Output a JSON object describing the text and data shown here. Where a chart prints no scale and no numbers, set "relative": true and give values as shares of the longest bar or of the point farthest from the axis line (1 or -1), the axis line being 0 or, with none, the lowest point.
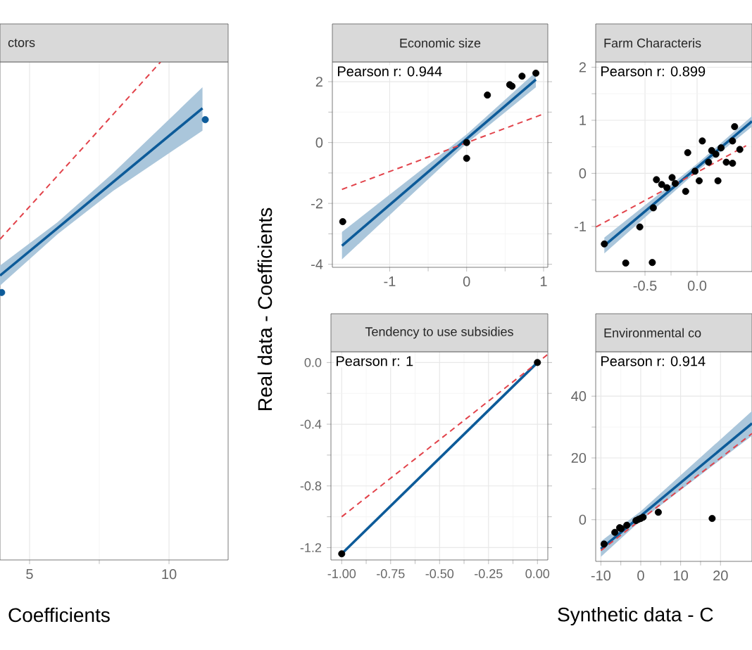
{
  "chart_data": [
    {
      "type": "scatter",
      "title": "ctors",
      "xlabel": "Coefficients",
      "relative": true,
      "grid": "x",
      "tick_labels": "x",
      "xlim": [
        3.94,
        12.12
      ],
      "xticks": [
        5,
        10
      ],
      "series": [
        {
          "marker": "circle",
          "color": "#0d5b99",
          "x": [
            4.0,
            11.3
          ],
          "values": [
            0.537,
            0.884
          ]
        },
        {
          "type": "line",
          "line_style": "solid",
          "color": "#0d5b99",
          "x": [
            3.94,
            6,
            8,
            11.2
          ],
          "values": [
            0.571,
            0.666,
            0.759,
            0.907
          ],
          "lower": [
            0.551,
            0.654,
            0.741,
            0.862
          ],
          "upper": [
            0.591,
            0.678,
            0.777,
            0.949
          ]
        },
        {
          "type": "line",
          "line_style": "dashed",
          "color": "#e2434b",
          "x": [
            3.94,
            9.7
          ],
          "values": [
            0.644,
            1.0
          ]
        }
      ]
    },
    {
      "type": "scatter",
      "title": "Economic size",
      "annotations": [
        "Pearson r: 0.944"
      ],
      "grid": true,
      "xlim": [
        -1.745,
        1.055
      ],
      "ylim": [
        -4.1,
        2.65
      ],
      "xticks": [
        -1,
        0,
        1
      ],
      "yticks": [
        -4,
        -2,
        0,
        2
      ],
      "series": [
        {
          "marker": "circle",
          "color": "#000000",
          "x": [
            -1.61,
            0.0,
            0.0,
            0.27,
            0.56,
            0.59,
            0.72,
            0.9
          ],
          "values": [
            -2.6,
            0.0,
            -0.52,
            1.56,
            1.9,
            1.85,
            2.18,
            2.28
          ]
        },
        {
          "type": "line",
          "line_style": "solid",
          "color": "#0d5b99",
          "x": [
            -1.62,
            0,
            0.9
          ],
          "values": [
            -3.39,
            0.12,
            2.07
          ],
          "lower": [
            -3.84,
            -0.03,
            1.82
          ],
          "upper": [
            -2.94,
            0.27,
            2.32
          ]
        },
        {
          "type": "line",
          "line_style": "dashed",
          "color": "#e2434b",
          "x": [
            -1.62,
            1.0
          ],
          "values": [
            -1.54,
            0.94
          ]
        }
      ]
    },
    {
      "type": "scatter",
      "title": "Farm Characteris",
      "annotations": [
        "Pearson r: 0.899"
      ],
      "grid": true,
      "xlim": [
        -0.973,
        0.527
      ],
      "ylim": [
        -1.85,
        2.1
      ],
      "xticks": [
        -0.5,
        {
          "value": 0,
          "label": "0.0"
        }
      ],
      "yticks": [
        -1,
        0,
        1,
        2
      ],
      "series": [
        {
          "marker": "circle",
          "color": "#000000",
          "x": [
            -0.89,
            -0.685,
            -0.43,
            -0.55,
            -0.42,
            -0.39,
            -0.34,
            -0.29,
            -0.24,
            -0.21,
            -0.11,
            -0.09,
            -0.02,
            0.02,
            0.05,
            0.11,
            0.14,
            0.18,
            0.2,
            0.23,
            0.28,
            0.34,
            0.34,
            0.36,
            0.41
          ],
          "values": [
            -1.33,
            -1.69,
            -1.68,
            -1.01,
            -0.65,
            -0.12,
            -0.21,
            -0.27,
            -0.08,
            -0.19,
            -0.34,
            0.39,
            0.04,
            -0.14,
            0.61,
            0.21,
            0.43,
            0.36,
            -0.14,
            0.48,
            0.21,
            0.19,
            0.61,
            0.88,
            0.45
          ]
        },
        {
          "type": "line",
          "line_style": "solid",
          "color": "#0d5b99",
          "x": [
            -0.89,
            0,
            0.527
          ],
          "values": [
            -1.36,
            0.11,
            0.98
          ],
          "lower": [
            -1.51,
            0.04,
            0.88
          ],
          "upper": [
            -1.21,
            0.18,
            1.08
          ]
        },
        {
          "type": "line",
          "line_style": "dashed",
          "color": "#e2434b",
          "x": [
            -0.97,
            0.47
          ],
          "values": [
            -1.01,
            0.52
          ]
        }
      ]
    },
    {
      "type": "scatter",
      "title": "Tendency to use subsidies",
      "ylabel": "Real data - Coefficients",
      "annotations": [
        "Pearson r: 1"
      ],
      "grid": true,
      "xlim": [
        -1.055,
        0.053
      ],
      "ylim": [
        -1.28,
        0.07
      ],
      "xticks": [
        {
          "value": -1.0,
          "label": "-1.00"
        },
        {
          "value": -0.75,
          "label": "-0.75"
        },
        {
          "value": -0.5,
          "label": "-0.50"
        },
        {
          "value": -0.25,
          "label": "-0.25"
        },
        {
          "value": 0,
          "label": "0.00"
        }
      ],
      "yticks": [
        -1.2,
        -0.8,
        -0.4,
        {
          "value": 0,
          "label": "0.0"
        }
      ],
      "series": [
        {
          "marker": "circle",
          "color": "#000000",
          "x": [
            -1.0,
            0.0
          ],
          "values": [
            -1.24,
            0.0
          ]
        },
        {
          "type": "line",
          "line_style": "solid",
          "color": "#0d5b99",
          "x": [
            -1.0,
            0.0
          ],
          "values": [
            -1.24,
            0.0
          ]
        },
        {
          "type": "line",
          "line_style": "dashed",
          "color": "#e2434b",
          "x": [
            -1.0,
            0.05
          ],
          "values": [
            -1.0,
            0.05
          ]
        }
      ]
    },
    {
      "type": "scatter",
      "title": "Environmental co",
      "xlabel": "Synthetic data - C",
      "annotations": [
        "Pearson r: 0.914"
      ],
      "grid": true,
      "xlim": [
        -11.3,
        27.9
      ],
      "ylim": [
        -13.5,
        54.4
      ],
      "xticks": [
        -10,
        0,
        10,
        20
      ],
      "yticks": [
        0,
        20,
        40
      ],
      "series": [
        {
          "marker": "circle",
          "color": "#000000",
          "x": [
            -9.2,
            -6.5,
            -5.3,
            -4.9,
            -3.5,
            -1.2,
            -0.6,
            0,
            0.6,
            4.4,
            17.9
          ],
          "values": [
            -7.9,
            -4.1,
            -2.6,
            -2.9,
            -1.8,
            -0.3,
            0.1,
            0.4,
            0.8,
            2.4,
            0.4
          ]
        },
        {
          "type": "line",
          "line_style": "solid",
          "color": "#0d5b99",
          "x": [
            -10,
            0,
            27.9
          ],
          "values": [
            -9.5,
            1.2,
            31.2
          ],
          "lower": [
            -12,
            -0.26,
            27.2
          ],
          "upper": [
            -7,
            2.74,
            35.2
          ]
        },
        {
          "type": "line",
          "line_style": "dashed",
          "color": "#e2434b",
          "x": [
            -10,
            27.9
          ],
          "values": [
            -10,
            27.9
          ]
        }
      ]
    }
  ]
}
